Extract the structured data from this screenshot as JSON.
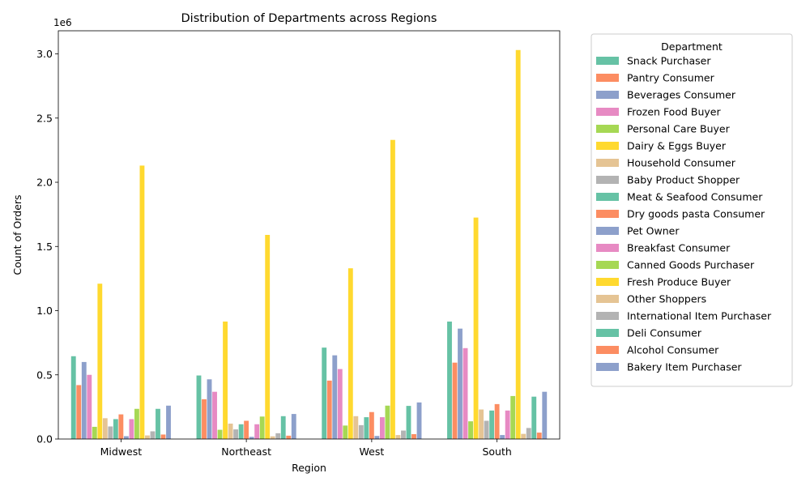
{
  "chart_data": {
    "type": "bar",
    "title": "Distribution of Departments across Regions",
    "xlabel": "Region",
    "ylabel": "Count of Orders",
    "offset_label": "1e6",
    "ylim": [
      0,
      3180000
    ],
    "y_ticks": [
      0,
      500000,
      1000000,
      1500000,
      2000000,
      2500000,
      3000000
    ],
    "y_tick_labels": [
      "0.0",
      "0.5",
      "1.0",
      "1.5",
      "2.0",
      "2.5",
      "3.0"
    ],
    "grid": false,
    "legend_title": "Department",
    "legend_position": "outside-right",
    "categories": [
      "Midwest",
      "Northeast",
      "West",
      "South"
    ],
    "series": [
      {
        "name": "Snack Purchaser",
        "color": "#66c2a5",
        "values": [
          645000,
          495000,
          712000,
          915000
        ]
      },
      {
        "name": "Pantry Consumer",
        "color": "#fc8d62",
        "values": [
          420000,
          310000,
          455000,
          595000
        ]
      },
      {
        "name": "Beverages Consumer",
        "color": "#8da0cb",
        "values": [
          600000,
          465000,
          652000,
          860000
        ]
      },
      {
        "name": "Frozen Food Buyer",
        "color": "#e78ac3",
        "values": [
          500000,
          368000,
          545000,
          708000
        ]
      },
      {
        "name": "Personal Care Buyer",
        "color": "#a6d854",
        "values": [
          95000,
          72000,
          105000,
          138000
        ]
      },
      {
        "name": "Dairy & Eggs Buyer",
        "color": "#ffd92f",
        "values": [
          1210000,
          915000,
          1330000,
          1725000
        ]
      },
      {
        "name": "Household Consumer",
        "color": "#e5c494",
        "values": [
          162000,
          120000,
          178000,
          230000
        ]
      },
      {
        "name": "Baby Product Shopper",
        "color": "#b3b3b3",
        "values": [
          98000,
          75000,
          108000,
          142000
        ]
      },
      {
        "name": "Meat & Seafood Consumer",
        "color": "#66c2a5",
        "values": [
          155000,
          115000,
          170000,
          222000
        ]
      },
      {
        "name": "Dry goods pasta Consumer",
        "color": "#fc8d62",
        "values": [
          192000,
          142000,
          210000,
          272000
        ]
      },
      {
        "name": "Pet Owner",
        "color": "#8da0cb",
        "values": [
          22000,
          17000,
          24000,
          31000
        ]
      },
      {
        "name": "Breakfast Consumer",
        "color": "#e78ac3",
        "values": [
          155000,
          115000,
          170000,
          222000
        ]
      },
      {
        "name": "Canned Goods Purchaser",
        "color": "#a6d854",
        "values": [
          235000,
          175000,
          260000,
          335000
        ]
      },
      {
        "name": "Fresh Produce Buyer",
        "color": "#ffd92f",
        "values": [
          2130000,
          1590000,
          2330000,
          3030000
        ]
      },
      {
        "name": "Other Shoppers",
        "color": "#e5c494",
        "values": [
          28000,
          21000,
          31000,
          40000
        ]
      },
      {
        "name": "International Item Purchaser",
        "color": "#b3b3b3",
        "values": [
          60000,
          45000,
          66000,
          86000
        ]
      },
      {
        "name": "Deli Consumer",
        "color": "#66c2a5",
        "values": [
          235000,
          178000,
          258000,
          330000
        ]
      },
      {
        "name": "Alcohol Consumer",
        "color": "#fc8d62",
        "values": [
          35000,
          26000,
          38000,
          50000
        ]
      },
      {
        "name": "Bakery Item Purchaser",
        "color": "#8da0cb",
        "values": [
          260000,
          195000,
          285000,
          368000
        ]
      }
    ]
  }
}
